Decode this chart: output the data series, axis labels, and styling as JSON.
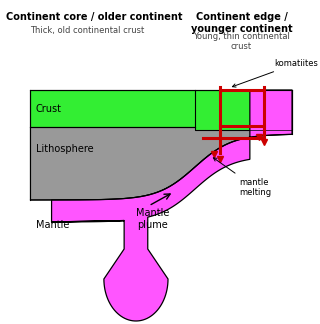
{
  "bg_color": "#ffffff",
  "crust_color": "#33ee33",
  "lithosphere_color": "#999999",
  "mantle_plume_color": "#ff55ff",
  "border_color": "#000000",
  "red_color": "#cc0000",
  "title_left": "Continent core / older continent",
  "subtitle_left": "Thick, old continental crust",
  "title_right": "Continent edge /\nyounger continent",
  "subtitle_right": "Young, thin continental\ncrust",
  "label_crust": "Crust",
  "label_lithosphere": "Lithosphere",
  "label_mantle": "Mantle",
  "label_mantle_plume": "Mantle\nplume",
  "label_komatiites": "komatiites",
  "label_mantle_melting": "mantle\nmelting",
  "figsize": [
    3.2,
    3.24
  ],
  "dpi": 100
}
